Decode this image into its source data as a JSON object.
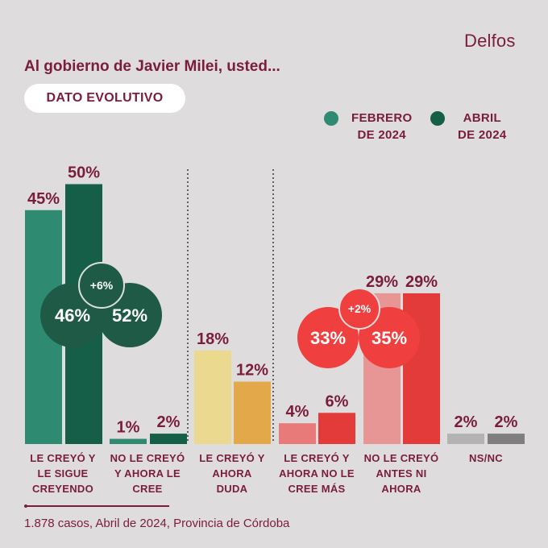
{
  "brand": "Delfos",
  "title": "Al gobierno de Javier Milei, usted...",
  "badge": "DATO EVOLUTIVO",
  "legend": [
    {
      "line1": "FEBRERO",
      "line2": "DE 2024",
      "color": "#2f8a72"
    },
    {
      "line1": "ABRIL",
      "line2": "DE 2024",
      "color": "#155e48"
    }
  ],
  "chart_data": {
    "type": "bar",
    "categories": [
      [
        "LE CREYÓ Y",
        "LE SIGUE",
        "CREYENDO"
      ],
      [
        "NO LE CREYÓ",
        "Y AHORA LE",
        "CREE"
      ],
      [
        "LE CREYÓ Y",
        "AHORA",
        "DUDA"
      ],
      [
        "LE CREYÓ Y",
        "AHORA NO LE",
        "CREE MÁS"
      ],
      [
        "NO LE CREYÓ",
        "ANTES NI",
        "AHORA"
      ],
      [
        "NS/NC"
      ]
    ],
    "series": [
      {
        "name": "FEBRERO DE 2024",
        "values": [
          45,
          1,
          18,
          4,
          29,
          2
        ]
      },
      {
        "name": "ABRIL DE 2024",
        "values": [
          50,
          2,
          12,
          6,
          29,
          2
        ]
      }
    ],
    "value_labels": [
      [
        "45%",
        "1%",
        "18%",
        "4%",
        "29%",
        "2%"
      ],
      [
        "50%",
        "2%",
        "12%",
        "6%",
        "29%",
        "2%"
      ]
    ],
    "bar_colors": [
      [
        "#2f8a72",
        "#155e48"
      ],
      [
        "#2f8a72",
        "#155e48"
      ],
      [
        "#ead98f",
        "#e2a84a"
      ],
      [
        "#e87a7a",
        "#e33a3a"
      ],
      [
        "#e89595",
        "#e33a3a"
      ],
      [
        "#b3b3b3",
        "#7f7f7f"
      ]
    ],
    "ylim": [
      0,
      50
    ],
    "groupings": [
      {
        "name": "positive",
        "totals": [
          "46%",
          "52%"
        ],
        "change": "+6%",
        "color": "#1e5a45"
      },
      {
        "name": "negative",
        "totals": [
          "33%",
          "35%"
        ],
        "change": "+2%",
        "color": "#ef3f3f"
      }
    ]
  },
  "footer": "1.878 casos, Abril de 2024, Provincia de Córdoba"
}
